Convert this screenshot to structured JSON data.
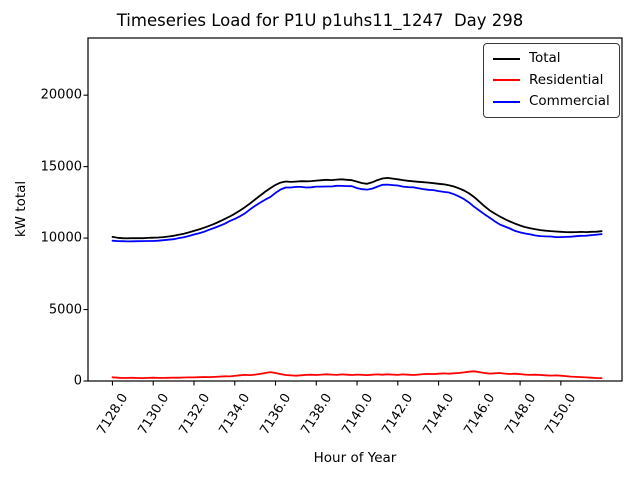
{
  "title": "Timeseries Load for P1U p1uhs11_1247  Day 298",
  "chart_data": {
    "type": "line",
    "title": "Timeseries Load for P1U p1uhs11_1247  Day 298",
    "xlabel": "Hour of Year",
    "ylabel": "kW total",
    "xlim": [
      7126.8,
      7153.0
    ],
    "ylim": [
      0,
      24000
    ],
    "grid": false,
    "legend_position": "upper right",
    "x_ticks": [
      7128,
      7130,
      7132,
      7134,
      7136,
      7138,
      7140,
      7142,
      7144,
      7146,
      7148,
      7150
    ],
    "x_tick_labels": [
      "7128.0",
      "7130.0",
      "7132.0",
      "7134.0",
      "7136.0",
      "7138.0",
      "7140.0",
      "7142.0",
      "7144.0",
      "7146.0",
      "7148.0",
      "7150.0"
    ],
    "y_ticks": [
      0,
      5000,
      10000,
      15000,
      20000
    ],
    "y_tick_labels": [
      "0",
      "5000",
      "10000",
      "15000",
      "20000"
    ],
    "x_start": 7128.0,
    "x_step": 0.25,
    "series": [
      {
        "name": "Total",
        "color": "#000000",
        "values": [
          10080,
          10020,
          9990,
          9985,
          10000,
          9990,
          9995,
          10010,
          10025,
          10040,
          10070,
          10110,
          10160,
          10230,
          10310,
          10400,
          10500,
          10610,
          10730,
          10860,
          11000,
          11160,
          11330,
          11510,
          11700,
          11920,
          12160,
          12420,
          12700,
          12980,
          13250,
          13500,
          13720,
          13880,
          13960,
          13930,
          13950,
          13980,
          13970,
          13990,
          14020,
          14050,
          14080,
          14060,
          14090,
          14110,
          14080,
          14050,
          13950,
          13850,
          13800,
          13900,
          14060,
          14170,
          14210,
          14160,
          14110,
          14060,
          14010,
          13970,
          13940,
          13910,
          13880,
          13840,
          13800,
          13760,
          13700,
          13610,
          13480,
          13330,
          13130,
          12870,
          12550,
          12230,
          11950,
          11720,
          11520,
          11330,
          11160,
          11010,
          10880,
          10770,
          10690,
          10620,
          10560,
          10520,
          10490,
          10460,
          10440,
          10420,
          10410,
          10420,
          10430,
          10420,
          10440,
          10450,
          10480
        ]
      },
      {
        "name": "Residential",
        "color": "#ff0000",
        "values": [
          260,
          230,
          210,
          215,
          225,
          210,
          205,
          215,
          230,
          220,
          215,
          225,
          240,
          230,
          245,
          255,
          250,
          265,
          280,
          270,
          290,
          310,
          330,
          320,
          360,
          400,
          430,
          410,
          450,
          500,
          560,
          620,
          560,
          480,
          420,
          390,
          370,
          400,
          430,
          440,
          420,
          450,
          470,
          450,
          430,
          460,
          440,
          420,
          450,
          430,
          410,
          440,
          460,
          440,
          470,
          450,
          430,
          460,
          440,
          420,
          450,
          480,
          500,
          480,
          510,
          530,
          510,
          540,
          560,
          600,
          650,
          680,
          620,
          560,
          520,
          540,
          560,
          520,
          490,
          510,
          480,
          450,
          430,
          440,
          420,
          400,
          380,
          390,
          370,
          340,
          310,
          290,
          270,
          250,
          230,
          210,
          200
        ]
      },
      {
        "name": "Commercial",
        "color": "#0000ff",
        "values": [
          9820,
          9790,
          9780,
          9770,
          9775,
          9780,
          9790,
          9795,
          9795,
          9820,
          9855,
          9885,
          9920,
          10000,
          10065,
          10145,
          10250,
          10345,
          10450,
          10590,
          10710,
          10850,
          11000,
          11190,
          11340,
          11520,
          11730,
          12010,
          12250,
          12480,
          12690,
          12880,
          13160,
          13400,
          13540,
          13540,
          13580,
          13580,
          13540,
          13550,
          13600,
          13600,
          13610,
          13610,
          13660,
          13650,
          13640,
          13630,
          13500,
          13420,
          13390,
          13460,
          13600,
          13730,
          13740,
          13710,
          13680,
          13600,
          13570,
          13550,
          13490,
          13430,
          13380,
          13360,
          13290,
          13230,
          13190,
          13070,
          12920,
          12730,
          12480,
          12190,
          11930,
          11670,
          11430,
          11180,
          10960,
          10810,
          10670,
          10500,
          10400,
          10320,
          10260,
          10180,
          10140,
          10120,
          10110,
          10070,
          10070,
          10080,
          10100,
          10130,
          10160,
          10170,
          10210,
          10240,
          10280
        ]
      }
    ]
  }
}
